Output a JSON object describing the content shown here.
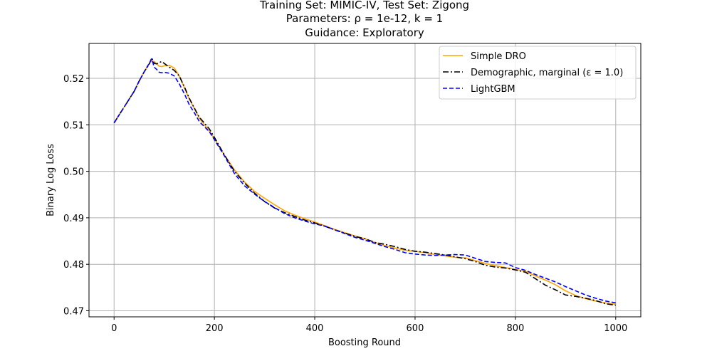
{
  "chart_data": {
    "type": "line",
    "title_lines": [
      "Training Set: MIMIC-IV, Test Set: Zigong",
      "Parameters: ρ = 1e-12, k = 1",
      "Guidance: Exploratory"
    ],
    "xlabel": "Boosting Round",
    "ylabel": "Binary Log Loss",
    "xlim": [
      -50,
      1050
    ],
    "ylim": [
      0.4687,
      0.5275
    ],
    "xticks": [
      0,
      200,
      400,
      600,
      800,
      1000
    ],
    "xtick_labels": [
      "0",
      "200",
      "400",
      "600",
      "800",
      "1000"
    ],
    "yticks": [
      0.47,
      0.48,
      0.49,
      0.5,
      0.51,
      0.52
    ],
    "ytick_labels": [
      "0.47",
      "0.48",
      "0.49",
      "0.50",
      "0.51",
      "0.52"
    ],
    "grid": true,
    "legend_position": "top-right",
    "series": [
      {
        "name": "Simple DRO",
        "color": "#ffa500",
        "dash": "solid",
        "x": [
          0,
          10,
          20,
          30,
          40,
          50,
          60,
          70,
          75,
          80,
          85,
          90,
          95,
          100,
          110,
          120,
          130,
          140,
          150,
          160,
          170,
          180,
          190,
          200,
          220,
          240,
          260,
          280,
          300,
          320,
          340,
          360,
          380,
          400,
          420,
          440,
          460,
          480,
          500,
          520,
          540,
          560,
          580,
          600,
          620,
          640,
          660,
          680,
          700,
          720,
          740,
          760,
          780,
          800,
          820,
          840,
          860,
          880,
          900,
          920,
          940,
          960,
          980,
          1000
        ],
        "y": [
          0.5104,
          0.5122,
          0.5138,
          0.5155,
          0.5172,
          0.5194,
          0.5214,
          0.5232,
          0.5238,
          0.5236,
          0.5231,
          0.5226,
          0.5225,
          0.5227,
          0.5228,
          0.5222,
          0.5205,
          0.518,
          0.5155,
          0.5135,
          0.5114,
          0.51,
          0.5086,
          0.507,
          0.5035,
          0.5003,
          0.4977,
          0.4957,
          0.4942,
          0.4928,
          0.4915,
          0.4906,
          0.4898,
          0.4891,
          0.4883,
          0.4875,
          0.4868,
          0.4861,
          0.4855,
          0.4847,
          0.484,
          0.4835,
          0.483,
          0.4828,
          0.4825,
          0.4821,
          0.4818,
          0.4815,
          0.4814,
          0.4808,
          0.4802,
          0.4797,
          0.4793,
          0.4789,
          0.4785,
          0.4775,
          0.4766,
          0.4756,
          0.4743,
          0.4733,
          0.4726,
          0.4721,
          0.4717,
          0.4714
        ]
      },
      {
        "name": "Demographic, marginal (ε = 1.0)",
        "color": "#000000",
        "dash": "dashdot",
        "x": [
          0,
          10,
          20,
          30,
          40,
          50,
          60,
          70,
          75,
          80,
          85,
          90,
          95,
          100,
          110,
          120,
          130,
          140,
          150,
          160,
          170,
          180,
          190,
          200,
          220,
          240,
          260,
          280,
          300,
          320,
          340,
          360,
          380,
          400,
          420,
          440,
          460,
          480,
          500,
          520,
          540,
          560,
          580,
          600,
          620,
          640,
          660,
          680,
          700,
          720,
          740,
          760,
          780,
          800,
          820,
          840,
          860,
          880,
          900,
          920,
          940,
          960,
          980,
          1000
        ],
        "y": [
          0.5104,
          0.5121,
          0.5138,
          0.5155,
          0.5172,
          0.5194,
          0.5214,
          0.523,
          0.5244,
          0.5232,
          0.5231,
          0.5234,
          0.5236,
          0.5232,
          0.5224,
          0.5217,
          0.5205,
          0.5182,
          0.5157,
          0.5136,
          0.5116,
          0.5104,
          0.5091,
          0.5073,
          0.5035,
          0.5,
          0.4975,
          0.4953,
          0.4935,
          0.4921,
          0.4911,
          0.4903,
          0.4895,
          0.4889,
          0.4882,
          0.4874,
          0.4867,
          0.486,
          0.4855,
          0.4847,
          0.4843,
          0.4838,
          0.4832,
          0.4828,
          0.4826,
          0.4823,
          0.482,
          0.4816,
          0.4812,
          0.4806,
          0.4798,
          0.4794,
          0.4792,
          0.4788,
          0.4783,
          0.4769,
          0.4755,
          0.4745,
          0.4734,
          0.4731,
          0.4727,
          0.4722,
          0.4715,
          0.4712
        ]
      },
      {
        "name": "LightGBM",
        "color": "#0000ff",
        "dash": "dashed",
        "x": [
          0,
          10,
          20,
          30,
          40,
          50,
          60,
          70,
          75,
          80,
          85,
          90,
          95,
          100,
          110,
          120,
          130,
          140,
          150,
          160,
          170,
          180,
          190,
          200,
          220,
          240,
          260,
          280,
          300,
          320,
          340,
          360,
          380,
          400,
          420,
          440,
          460,
          480,
          500,
          520,
          540,
          560,
          580,
          600,
          620,
          640,
          660,
          680,
          700,
          720,
          740,
          760,
          780,
          800,
          820,
          840,
          860,
          880,
          900,
          920,
          940,
          960,
          980,
          1000
        ],
        "y": [
          0.5104,
          0.5121,
          0.5138,
          0.5155,
          0.5172,
          0.5194,
          0.5214,
          0.5232,
          0.5242,
          0.5224,
          0.5219,
          0.5213,
          0.5212,
          0.5213,
          0.5211,
          0.5205,
          0.5188,
          0.5167,
          0.5143,
          0.5126,
          0.5107,
          0.5096,
          0.5085,
          0.5068,
          0.5033,
          0.4995,
          0.4969,
          0.4951,
          0.4935,
          0.4922,
          0.4909,
          0.49,
          0.4893,
          0.4887,
          0.4882,
          0.4874,
          0.4866,
          0.4858,
          0.4852,
          0.4845,
          0.4838,
          0.4832,
          0.4825,
          0.4822,
          0.482,
          0.4819,
          0.482,
          0.4821,
          0.482,
          0.4813,
          0.4806,
          0.4804,
          0.4803,
          0.4793,
          0.4787,
          0.4778,
          0.477,
          0.4762,
          0.4752,
          0.4743,
          0.4734,
          0.4727,
          0.4721,
          0.4717
        ]
      }
    ]
  }
}
